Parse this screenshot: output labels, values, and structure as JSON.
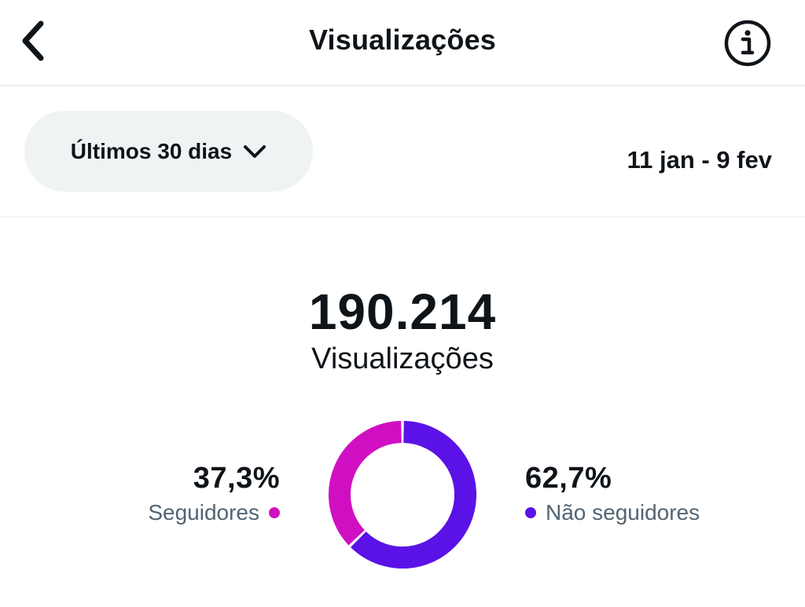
{
  "header": {
    "title": "Visualizações",
    "back_icon": "chevron-left-icon",
    "info_icon": "info-circle-icon"
  },
  "filter": {
    "range_label": "Últimos 30 dias",
    "dropdown_icon": "chevron-down-icon",
    "date_range": "11 jan - 9 fev"
  },
  "summary": {
    "total": "190.214",
    "label": "Visualizações"
  },
  "breakdown": {
    "followers": {
      "percent_label": "37,3%",
      "label": "Seguidores",
      "value": 37.3,
      "color": "#d10fc2"
    },
    "non_followers": {
      "percent_label": "62,7%",
      "label": "Não seguidores",
      "value": 62.7,
      "color": "#5b12e6"
    }
  },
  "chart_data": {
    "type": "pie",
    "categories": [
      "Seguidores",
      "Não seguidores"
    ],
    "values": [
      37.3,
      62.7
    ],
    "colors": [
      "#d10fc2",
      "#5b12e6"
    ],
    "title": ""
  }
}
